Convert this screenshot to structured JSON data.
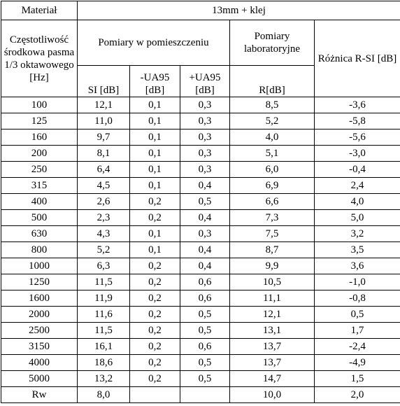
{
  "header": {
    "material_label": "Materiał",
    "material": "13mm + klej",
    "frequency": "Częstotliwość środkowa pasma 1/3 oktawowego [Hz]",
    "room_group": "Pomiary w pomieszczeniu",
    "lab_group": "Pomiary laboratoryjne",
    "difference": "Różnica R-SI [dB]",
    "si": "SI [dB]",
    "minus_ua": "-UA95 [dB]",
    "plus_ua": "+UA95 [dB]",
    "r": "R[dB]"
  },
  "table": {
    "rows": [
      [
        "100",
        "12,1",
        "0,1",
        "0,3",
        "8,5",
        "-3,6"
      ],
      [
        "125",
        "11,0",
        "0,1",
        "0,3",
        "5,2",
        "-5,8"
      ],
      [
        "160",
        "9,7",
        "0,1",
        "0,3",
        "4,0",
        "-5,6"
      ],
      [
        "200",
        "8,1",
        "0,1",
        "0,3",
        "5,1",
        "-3,0"
      ],
      [
        "250",
        "6,4",
        "0,1",
        "0,3",
        "6,0",
        "-0,4"
      ],
      [
        "315",
        "4,5",
        "0,1",
        "0,4",
        "6,9",
        "2,4"
      ],
      [
        "400",
        "2,6",
        "0,2",
        "0,5",
        "6,6",
        "4,0"
      ],
      [
        "500",
        "2,3",
        "0,2",
        "0,4",
        "7,3",
        "5,0"
      ],
      [
        "630",
        "4,3",
        "0,1",
        "0,3",
        "7,5",
        "3,2"
      ],
      [
        "800",
        "5,2",
        "0,1",
        "0,4",
        "8,7",
        "3,5"
      ],
      [
        "1000",
        "6,3",
        "0,2",
        "0,4",
        "9,9",
        "3,6"
      ],
      [
        "1250",
        "11,5",
        "0,2",
        "0,6",
        "10,5",
        "-1,0"
      ],
      [
        "1600",
        "11,9",
        "0,2",
        "0,6",
        "11,1",
        "-0,8"
      ],
      [
        "2000",
        "11,6",
        "0,2",
        "0,5",
        "12,1",
        "0,5"
      ],
      [
        "2500",
        "11,5",
        "0,2",
        "0,5",
        "13,1",
        "1,7"
      ],
      [
        "3150",
        "16,1",
        "0,2",
        "0,6",
        "13,7",
        "-2,4"
      ],
      [
        "4000",
        "18,6",
        "0,2",
        "0,5",
        "13,7",
        "-4,9"
      ],
      [
        "5000",
        "13,2",
        "0,2",
        "0,5",
        "14,7",
        "1,5"
      ],
      [
        "Rw",
        "8,0",
        null,
        null,
        "10,0",
        "2,0"
      ]
    ]
  }
}
